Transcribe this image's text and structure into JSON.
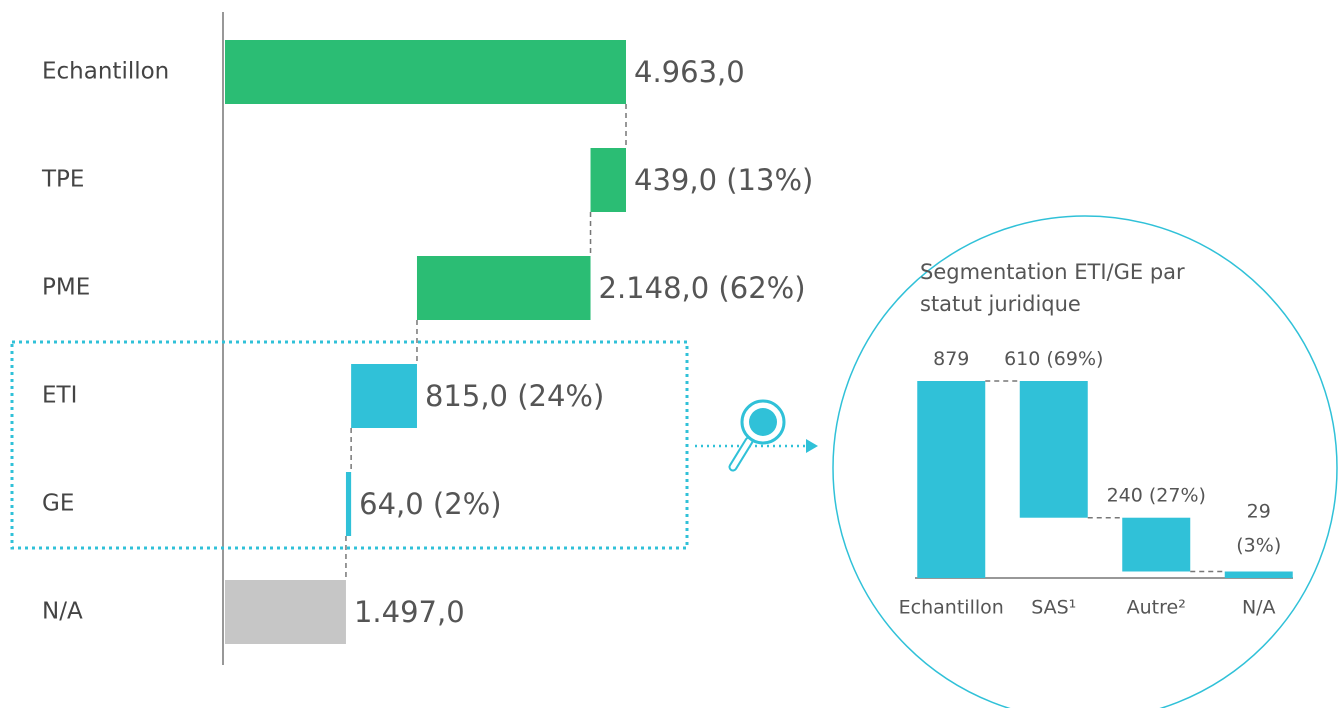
{
  "chart_data": [
    {
      "type": "waterfall",
      "orientation": "horizontal",
      "categories": [
        "Echantillon",
        "TPE",
        "PME",
        "ETI",
        "GE",
        "N/A"
      ],
      "values": [
        4963,
        439,
        2148,
        815,
        64,
        1497
      ],
      "value_labels": [
        "4.963,0",
        "439,0 (13%)",
        "2.148,0 (62%)",
        "815,0 (24%)",
        "64,0 (2%)",
        "1.497,0"
      ],
      "measure": [
        "total",
        "decrease",
        "decrease",
        "decrease",
        "decrease",
        "total"
      ],
      "colors": [
        "#2bbd74",
        "#2bbd74",
        "#2bbd74",
        "#30c1d8",
        "#30c1d8",
        "#c6c6c6"
      ],
      "xlim": [
        0,
        4963
      ]
    },
    {
      "type": "waterfall",
      "orientation": "vertical",
      "title": "Segmentation ETI/GE par statut juridique",
      "categories": [
        "Echantillon",
        "SAS¹",
        "Autre²",
        "N/A"
      ],
      "values": [
        879,
        610,
        240,
        29
      ],
      "value_labels": [
        "879",
        "610 (69%)",
        "240 (27%)",
        "29 (3%)"
      ],
      "measure": [
        "total",
        "decrease",
        "decrease",
        "decrease"
      ],
      "colors": [
        "#30c1d8",
        "#30c1d8",
        "#30c1d8",
        "#30c1d8"
      ],
      "ylim": [
        0,
        879
      ]
    }
  ]
}
